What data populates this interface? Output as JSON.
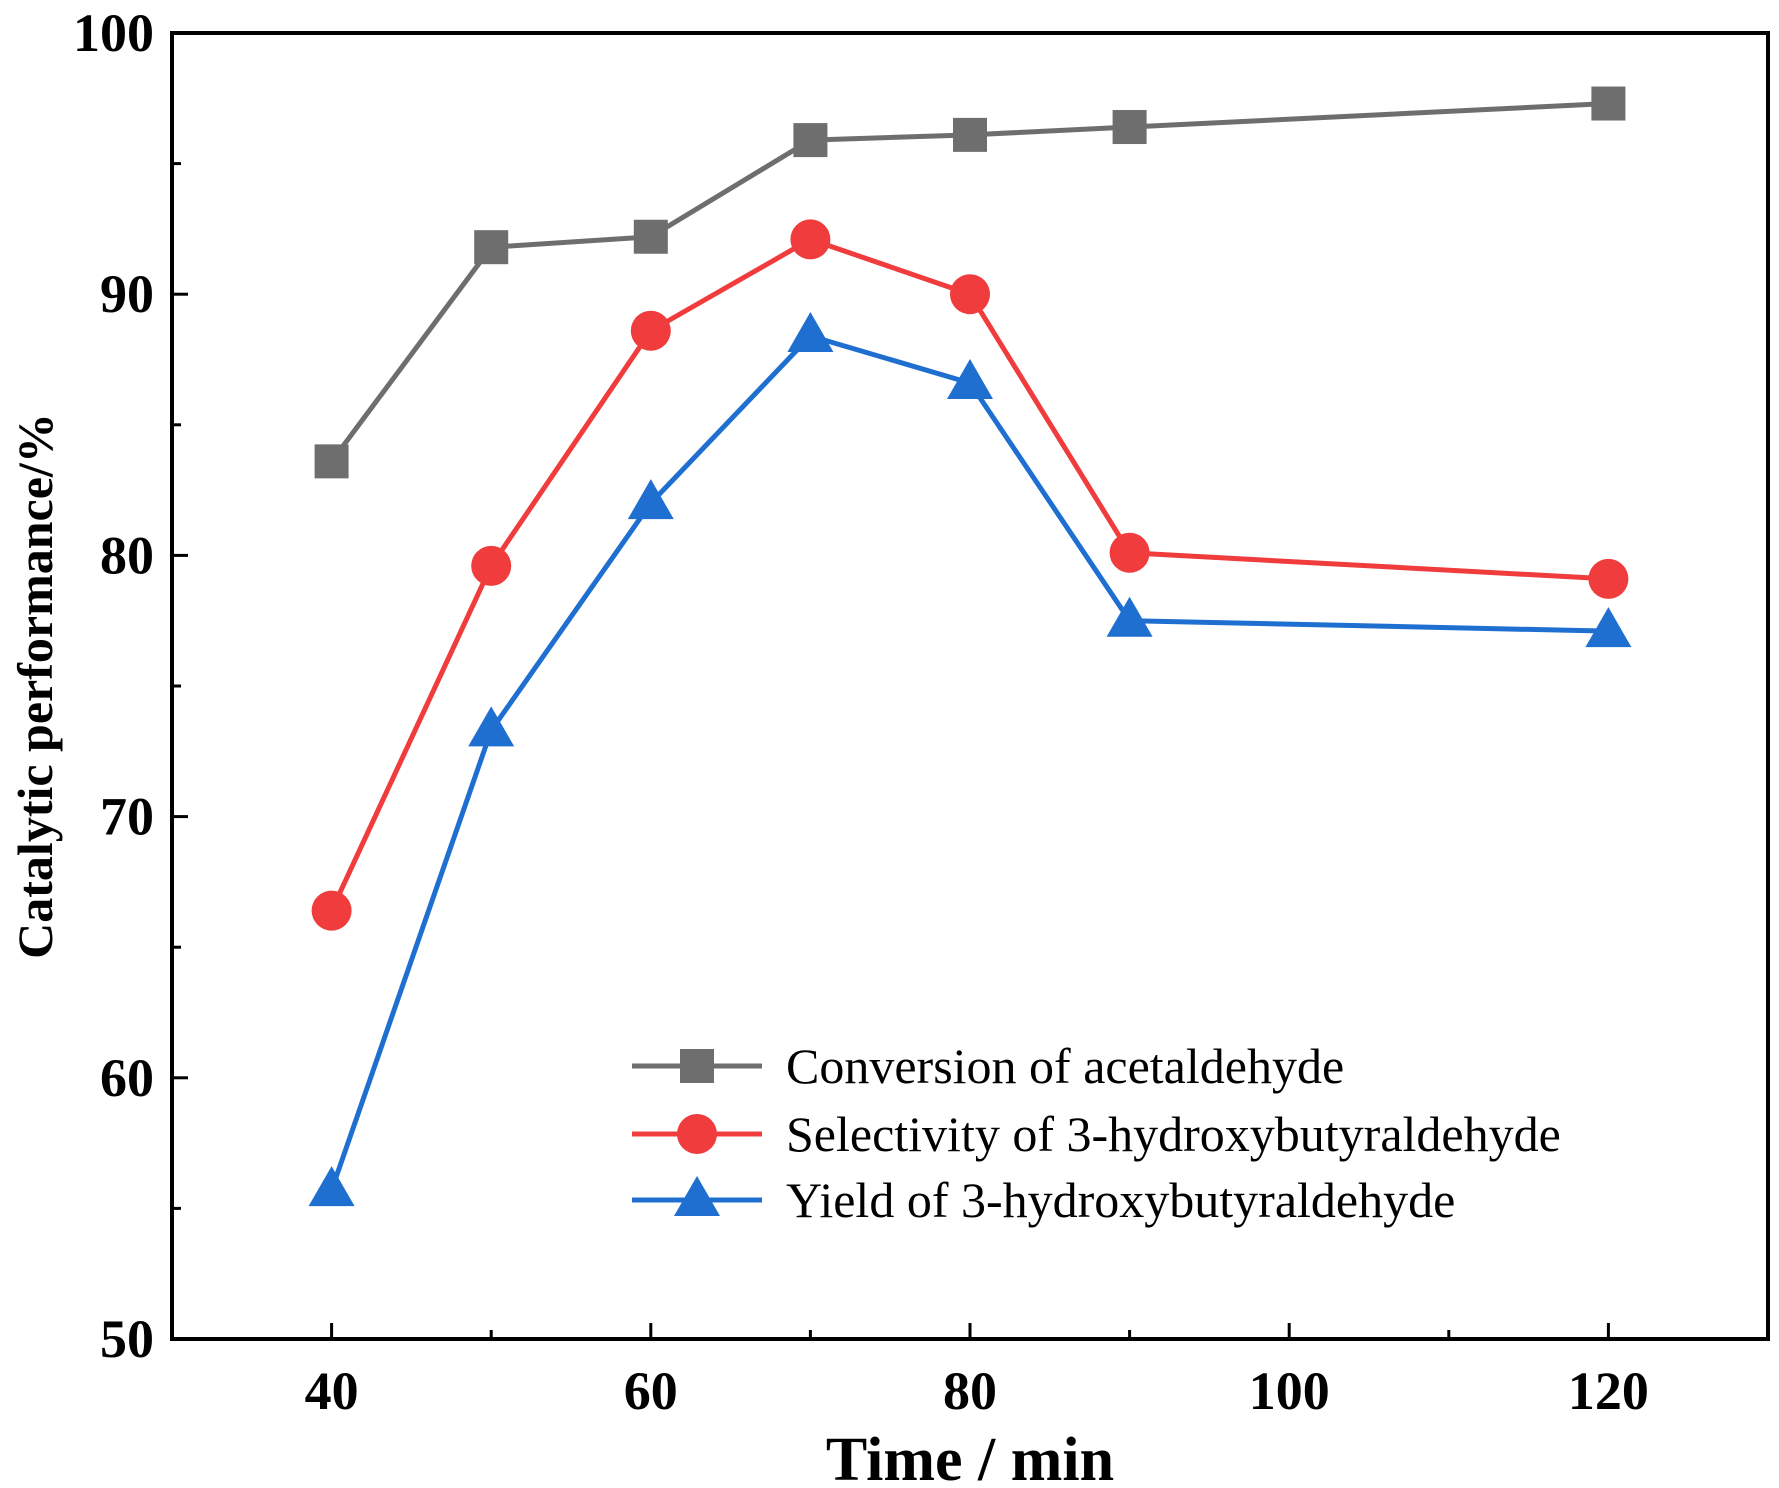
{
  "chart_data": {
    "type": "line",
    "title": "",
    "xlabel": "Time / min",
    "ylabel": "Catalytic performance/%",
    "xlim": [
      30,
      130
    ],
    "ylim": [
      50,
      100
    ],
    "x_ticks": [
      40,
      60,
      80,
      100,
      120
    ],
    "x_minor_ticks": [
      50,
      70,
      90,
      110
    ],
    "y_ticks": [
      50,
      60,
      70,
      80,
      90,
      100
    ],
    "y_minor_ticks": [
      55,
      65,
      75,
      85,
      95
    ],
    "legend_position": "bottom-right",
    "x": [
      40,
      50,
      60,
      70,
      80,
      90,
      120
    ],
    "series": [
      {
        "name": "Conversion of acetaldehyde",
        "marker": "square",
        "color": "#6e6e6e",
        "values": [
          83.6,
          91.8,
          92.2,
          95.9,
          96.1,
          96.4,
          97.3
        ]
      },
      {
        "name": "Selectivity of 3-hydroxybutyraldehyde",
        "marker": "circle",
        "color": "#f03c3c",
        "values": [
          66.4,
          79.6,
          88.6,
          92.1,
          90.0,
          80.1,
          79.1
        ]
      },
      {
        "name": "Yield of 3-hydroxybutyraldehyde",
        "marker": "triangle",
        "color": "#1f6fd1",
        "values": [
          55.7,
          73.3,
          82.0,
          88.4,
          86.6,
          77.5,
          77.1
        ]
      }
    ]
  }
}
